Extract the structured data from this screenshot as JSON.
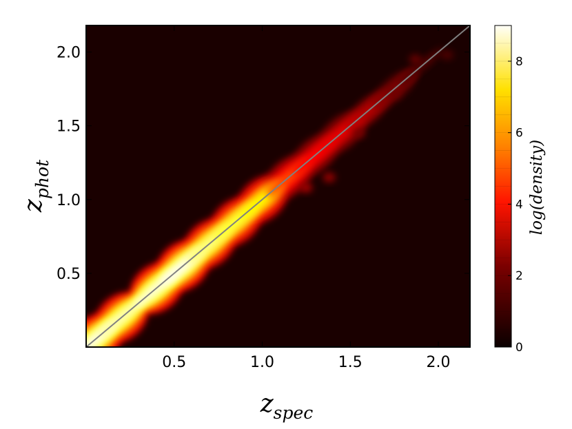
{
  "chart_data": {
    "type": "heatmap",
    "title": "",
    "xlabel": {
      "base": "z",
      "sub": "spec"
    },
    "ylabel": {
      "base": "z",
      "sub": "phot"
    },
    "xlim": [
      0.0,
      2.18
    ],
    "ylim": [
      0.0,
      2.18
    ],
    "xticks": [
      0.5,
      1.0,
      1.5,
      2.0
    ],
    "xtick_labels": [
      "0.5",
      "1.0",
      "1.5",
      "2.0"
    ],
    "yticks": [
      0.5,
      1.0,
      1.5,
      2.0
    ],
    "ytick_labels": [
      "0.5",
      "1.0",
      "1.5",
      "2.0"
    ],
    "grid": false,
    "reference_line": {
      "label": "",
      "from": [
        0.0,
        0.0
      ],
      "to": [
        2.18,
        2.18
      ],
      "color": "#808080"
    },
    "colorbar": {
      "label": "log(density)",
      "min": 0,
      "max": 9,
      "ticks": [
        0,
        2,
        4,
        6,
        8
      ],
      "tick_labels": [
        "0",
        "2",
        "4",
        "6",
        "8"
      ],
      "colormap": "hot"
    },
    "density_ridge": [
      {
        "z": 0.05,
        "log_density": 8.6
      },
      {
        "z": 0.2,
        "log_density": 8.2
      },
      {
        "z": 0.4,
        "log_density": 8.5
      },
      {
        "z": 0.55,
        "log_density": 8.7
      },
      {
        "z": 0.7,
        "log_density": 7.8
      },
      {
        "z": 0.85,
        "log_density": 7.2
      },
      {
        "z": 1.0,
        "log_density": 6.6
      },
      {
        "z": 1.15,
        "log_density": 4.2
      },
      {
        "z": 1.3,
        "log_density": 3.2
      },
      {
        "z": 1.45,
        "log_density": 2.8
      },
      {
        "z": 1.6,
        "log_density": 2.2
      },
      {
        "z": 1.75,
        "log_density": 1.5
      },
      {
        "z": 1.9,
        "log_density": 0.9
      }
    ],
    "outlier_blobs": [
      {
        "x": 1.25,
        "y": 1.08,
        "log_density": 2.0
      },
      {
        "x": 1.38,
        "y": 1.15,
        "log_density": 1.8
      },
      {
        "x": 1.55,
        "y": 1.45,
        "log_density": 1.4
      },
      {
        "x": 1.87,
        "y": 1.95,
        "log_density": 1.2
      },
      {
        "x": 2.05,
        "y": 1.98,
        "log_density": 0.9
      },
      {
        "x": 1.75,
        "y": 1.72,
        "log_density": 1.3
      }
    ]
  }
}
